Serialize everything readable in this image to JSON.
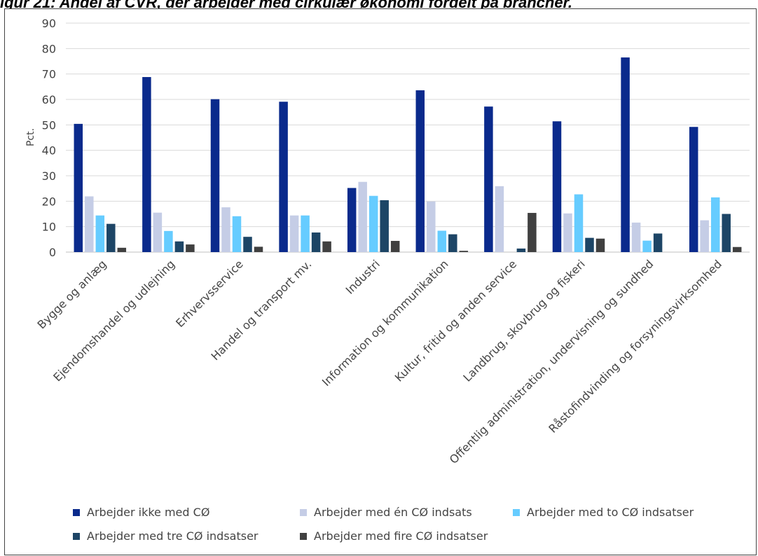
{
  "title": "igur 21: Andel af CVR, der arbejder med cirkulær økonomi fordelt på brancher.",
  "chart_data": {
    "type": "bar",
    "ylabel": "Pct.",
    "xlabel": "",
    "ylim": [
      0,
      90
    ],
    "yticks": [
      0,
      10,
      20,
      30,
      40,
      50,
      60,
      70,
      80,
      90
    ],
    "grid": true,
    "legend_position": "bottom",
    "categories": [
      "Bygge og anlæg",
      "Ejendomshandel og udlejning",
      "Erhvervsservice",
      "Handel og transport mv.",
      "Industri",
      "Information og kommunikation",
      "Kultur, fritid og anden service",
      "Landbrug, skovbrug og fiskeri",
      "Offentlig administration, undervisning og sundhed",
      "Råstofindvinding og forsyningsvirksomhed"
    ],
    "series": [
      {
        "name": "Arbejder ikke med CØ",
        "color": "#0a2a8c",
        "values": [
          50.4,
          68.8,
          60.1,
          59.1,
          25.2,
          63.6,
          57.2,
          51.4,
          76.5,
          49.2
        ]
      },
      {
        "name": "Arbejder med én CØ indsats",
        "color": "#c5cde6",
        "values": [
          21.9,
          15.5,
          17.6,
          14.4,
          27.6,
          19.9,
          25.9,
          15.2,
          11.6,
          12.5
        ]
      },
      {
        "name": "Arbejder med to CØ indsatser",
        "color": "#66ccff",
        "values": [
          14.4,
          8.3,
          14.1,
          14.4,
          22.1,
          8.4,
          0,
          22.7,
          4.5,
          21.5
        ]
      },
      {
        "name": "Arbejder med tre CØ indsatser",
        "color": "#1d4566",
        "values": [
          11.1,
          4.2,
          6.0,
          7.7,
          20.4,
          7.0,
          1.4,
          5.6,
          7.3,
          15.0
        ]
      },
      {
        "name": "Arbejder med fire CØ indsatser",
        "color": "#404040",
        "values": [
          1.7,
          3.0,
          2.1,
          4.2,
          4.4,
          0.5,
          15.4,
          5.3,
          0,
          2.0
        ]
      }
    ]
  }
}
